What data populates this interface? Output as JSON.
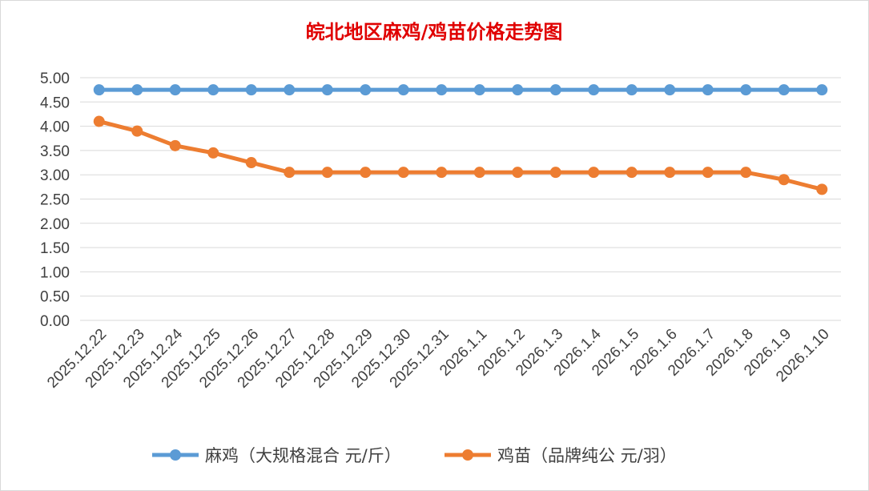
{
  "chart_data": {
    "type": "line",
    "title": "皖北地区麻鸡/鸡苗价格走势图",
    "xlabel": "",
    "ylabel": "",
    "ylim": [
      0,
      5
    ],
    "ytick_step": 0.5,
    "grid": true,
    "legend_position": "bottom",
    "categories": [
      "2025.12.22",
      "2025.12.23",
      "2025.12.24",
      "2025.12.25",
      "2025.12.26",
      "2025.12.27",
      "2025.12.28",
      "2025.12.29",
      "2025.12.30",
      "2025.12.31",
      "2026.1.1",
      "2026.1.2",
      "2026.1.3",
      "2026.1.4",
      "2026.1.5",
      "2026.1.6",
      "2026.1.7",
      "2026.1.8",
      "2026.1.9",
      "2026.1.10"
    ],
    "series": [
      {
        "name": "麻鸡（大规格混合 元/斤）",
        "color": "#5b9bd5",
        "values": [
          4.75,
          4.75,
          4.75,
          4.75,
          4.75,
          4.75,
          4.75,
          4.75,
          4.75,
          4.75,
          4.75,
          4.75,
          4.75,
          4.75,
          4.75,
          4.75,
          4.75,
          4.75,
          4.75,
          4.75
        ]
      },
      {
        "name": "鸡苗（品牌纯公 元/羽）",
        "color": "#ed7d31",
        "values": [
          4.1,
          3.9,
          3.6,
          3.45,
          3.25,
          3.05,
          3.05,
          3.05,
          3.05,
          3.05,
          3.05,
          3.05,
          3.05,
          3.05,
          3.05,
          3.05,
          3.05,
          3.05,
          2.9,
          2.7
        ]
      }
    ]
  }
}
